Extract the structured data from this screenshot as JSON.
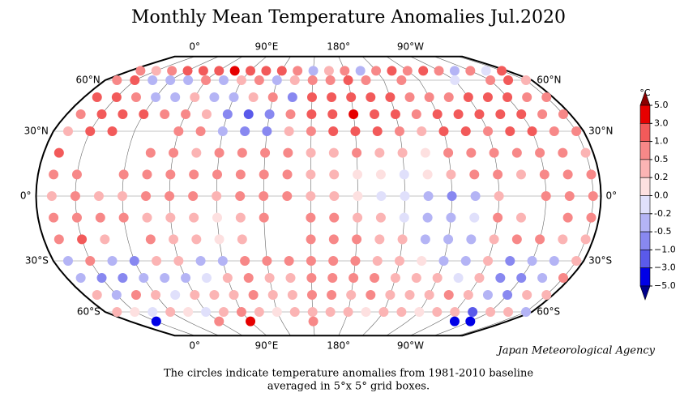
{
  "map": {
    "type": "dot-map",
    "title": "Monthly Mean Temperature Anomalies Jul.2020",
    "unit": "°C",
    "credit": "Japan Meteorological Agency",
    "caption": [
      "The circles indicate temperature anomalies from 1981-2010 baseline",
      "averaged in 5°x 5° grid boxes."
    ],
    "lonticks": [
      {
        "value": 0,
        "label": "0°"
      },
      {
        "value": 90,
        "label": "90°E"
      },
      {
        "value": 180,
        "label": "180°"
      },
      {
        "value": -90,
        "label": "90°W"
      }
    ],
    "latticks": [
      {
        "value": 60,
        "label": "60°N"
      },
      {
        "value": 30,
        "label": "30°N"
      },
      {
        "value": 0,
        "label": "0°"
      },
      {
        "value": -30,
        "label": "30°S"
      },
      {
        "value": -60,
        "label": "60°S"
      }
    ],
    "legend": {
      "ticks": [
        {
          "value": 5,
          "label": "5.0"
        },
        {
          "value": 3,
          "label": "3.0"
        },
        {
          "value": 1,
          "label": "1.0"
        },
        0.5,
        0.2,
        {
          "value": 0,
          "label": "0.0"
        },
        -0.2,
        -0.5,
        {
          "value": -1,
          "label": "−1.0"
        },
        {
          "value": -3,
          "label": "−3.0"
        },
        {
          "value": -5,
          "label": "−5.0"
        }
      ],
      "colors": [
        "#8b0000",
        "#e60000",
        "#f25a5a",
        "#f78888",
        "#fbb4b4",
        "#fde0e0",
        "#e0e0fb",
        "#b4b4f5",
        "#8888f0",
        "#5a5aea",
        "#0000e6",
        "#00008b"
      ]
    },
    "latitudes": [
      70,
      60,
      50,
      40,
      30,
      20,
      10,
      0,
      -10,
      -20,
      -30,
      -40,
      -50,
      -60,
      -70
    ],
    "longitudes": [
      -30,
      -15,
      0,
      15,
      30,
      45,
      60,
      75,
      90,
      105,
      120,
      135,
      150,
      165,
      180,
      195,
      210,
      225,
      240,
      255,
      270,
      285,
      300,
      315
    ],
    "anomalies": [
      [
        1,
        0.5,
        0.3,
        0.8,
        1.5,
        2,
        2.5,
        3.2,
        2,
        1.5,
        1,
        0.5,
        -0.5,
        0.3,
        0.5,
        -0.3,
        0.5,
        1,
        0.8,
        1,
        0.5,
        -0.3,
        0.5,
        -0.2
      ],
      [
        0.3,
        0.5,
        1,
        -0.3,
        -0.5,
        -0.4,
        0.5,
        -0.3,
        0.3,
        0.5,
        -0.3,
        0.3,
        0.6,
        0.8,
        1.2,
        0.8,
        null,
        0.5,
        null,
        null,
        -0.2,
        null,
        0.8,
        1
      ],
      [
        0.8,
        1,
        1.2,
        0.8,
        -0.3,
        -0.5,
        0.2,
        -0.3,
        -0.5,
        0.4,
        0.6,
        -0.6,
        1.2,
        1.5,
        1.8,
        1.5,
        1,
        0.8,
        0.5,
        0.6,
        1,
        1.2,
        1.5,
        0.8
      ],
      [
        0.5,
        0.8,
        1.2,
        1.5,
        1,
        0.8,
        0.6,
        0.3,
        -0.6,
        -1.2,
        -0.8,
        0.5,
        1.5,
        2,
        3.2,
        2.5,
        1,
        0.8,
        1.5,
        1.2,
        1,
        1.8,
        1.5,
        0.8
      ],
      [
        0.5,
        0.3,
        1,
        1.5,
        null,
        null,
        0.8,
        0.5,
        -0.5,
        -0.6,
        -0.8,
        0.4,
        0.8,
        1.2,
        1.5,
        1,
        0.5,
        0.3,
        1.5,
        1,
        0.6,
        1,
        1.2,
        0.6
      ],
      [
        0.4,
        1.5,
        null,
        null,
        null,
        0.6,
        0.5,
        0.3,
        0.5,
        0.8,
        0.6,
        0.5,
        0.4,
        0.3,
        0.5,
        0.3,
        0.2,
        0.1,
        0.5,
        0.6,
        0.5,
        0.6,
        0.7,
        0.5
      ],
      [
        0.5,
        0.8,
        0.6,
        null,
        0.5,
        0.8,
        0.6,
        0.5,
        0.6,
        0.8,
        0.8,
        0.5,
        0.3,
        0.2,
        0.1,
        0.05,
        -0.1,
        0.1,
        0.3,
        0.5,
        0.6,
        0.4,
        0.5,
        0.6
      ],
      [
        0.6,
        0.3,
        0.5,
        0.4,
        0.3,
        0.5,
        0.6,
        0.5,
        0.4,
        0.8,
        0.8,
        0.6,
        0.4,
        0.3,
        0.1,
        -0.1,
        -0.2,
        -0.4,
        -0.6,
        -0.3,
        0.2,
        null,
        0.6,
        0.5
      ],
      [
        0.6,
        0.8,
        0.8,
        0.6,
        0.5,
        0.3,
        0.4,
        0.2,
        0.1,
        0.3,
        0.6,
        null,
        0.6,
        0.5,
        0.3,
        0.2,
        -0.1,
        -0.3,
        -0.5,
        -0.2,
        0.5,
        0.3,
        null,
        0.7
      ],
      [
        0.3,
        0.5,
        1,
        0.2,
        null,
        0.6,
        0.3,
        0.2,
        0.1,
        0.4,
        null,
        null,
        0.6,
        0.5,
        0.6,
        0.4,
        0.2,
        -0.3,
        -0.5,
        -0.3,
        0.2,
        0.5,
        0.6,
        0.3
      ],
      [
        0.2,
        -0.3,
        0.5,
        -0.5,
        -0.6,
        0.3,
        0.2,
        -0.4,
        -0.3,
        0.5,
        0.6,
        0.8,
        0.8,
        0.6,
        0.5,
        0.4,
        0.3,
        0.1,
        -0.3,
        -0.4,
        0.2,
        -0.8,
        -0.5,
        -0.3
      ],
      [
        0.5,
        -0.4,
        -0.8,
        -0.6,
        -0.5,
        -0.3,
        -0.4,
        -0.2,
        0.2,
        0.5,
        0.3,
        0.4,
        0.6,
        0.8,
        0.5,
        0.6,
        0.4,
        0.3,
        0.2,
        -0.2,
        0.3,
        -0.6,
        -1,
        -0.5
      ],
      [
        0.3,
        0.2,
        -0.3,
        0.5,
        0.3,
        -0.2,
        0.2,
        0.4,
        0.3,
        0.5,
        0.4,
        0.3,
        0.6,
        0.5,
        0.3,
        0.5,
        0.4,
        0.2,
        0.3,
        0.5,
        0.4,
        -0.5,
        -0.6,
        0.2
      ],
      [
        -0.3,
        0.2,
        0.1,
        -0.2,
        0.3,
        0.1,
        -0.2,
        0.3,
        0.5,
        0.2,
        0.1,
        0.3,
        0.3,
        0.2,
        0.4,
        0.1,
        0.2,
        0.3,
        0.1,
        0.2,
        0.3,
        -1.5,
        0.4,
        0.3
      ],
      [
        null,
        null,
        -3.5,
        null,
        null,
        null,
        0.8,
        null,
        4,
        null,
        null,
        null,
        0.5,
        null,
        null,
        null,
        null,
        null,
        null,
        null,
        null,
        -3.5,
        -3.5,
        null
      ]
    ]
  }
}
